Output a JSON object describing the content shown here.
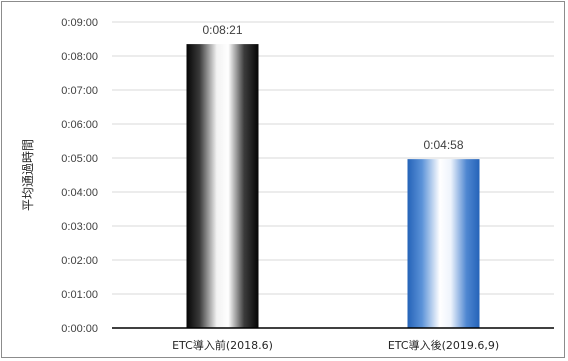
{
  "chart_data": {
    "type": "bar",
    "title": "",
    "xlabel": "",
    "ylabel": "平均通過時間",
    "categories": [
      "ETC導入前(2018.6)",
      "ETC導入後(2019.6,9)"
    ],
    "values_seconds": [
      501,
      298
    ],
    "data_labels": [
      "0:08:21",
      "0:04:58"
    ],
    "ylim_seconds": [
      0,
      540
    ],
    "y_tick_step_seconds": 60,
    "y_ticks": [
      "0:00:00",
      "0:01:00",
      "0:02:00",
      "0:03:00",
      "0:04:00",
      "0:05:00",
      "0:06:00",
      "0:07:00",
      "0:08:00",
      "0:09:00"
    ],
    "grid": true,
    "legend": "none",
    "colors": {
      "bar_before": "#000000",
      "bar_after": "#2e75c8",
      "grid": "#d9d9d9"
    }
  }
}
